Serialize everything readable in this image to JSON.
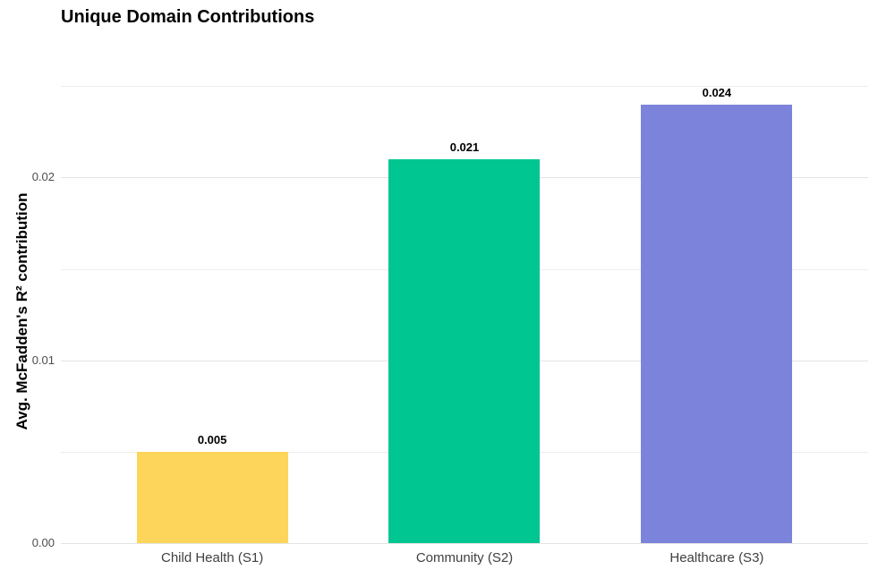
{
  "chart_data": {
    "type": "bar",
    "title": "Unique Domain Contributions",
    "xlabel": "",
    "ylabel": "Avg. McFadden's R² contribution",
    "categories": [
      "Child Health (S1)",
      "Community (S2)",
      "Healthcare (S3)"
    ],
    "values": [
      0.005,
      0.021,
      0.024
    ],
    "value_labels": [
      "0.005",
      "0.021",
      "0.024"
    ],
    "bar_colors": [
      "#FCD55A",
      "#00C691",
      "#7C83DB"
    ],
    "ylim": [
      0,
      0.0253
    ],
    "yticks": [
      {
        "value": 0.0,
        "label": "0.00"
      },
      {
        "value": 0.01,
        "label": "0.01"
      },
      {
        "value": 0.02,
        "label": "0.02"
      }
    ],
    "minor_yticks": [
      0.005,
      0.015,
      0.025
    ],
    "grid": "horizontal",
    "legend_position": "none"
  },
  "style": {
    "background": "#FFFFFF",
    "major_grid_color": "#E4E4E4",
    "minor_grid_color": "#EDEDED",
    "y_tick_label_color": "#4D4D4D",
    "x_tick_label_color": "#404040",
    "title_color": "#000000",
    "value_label_color": "#000000"
  }
}
